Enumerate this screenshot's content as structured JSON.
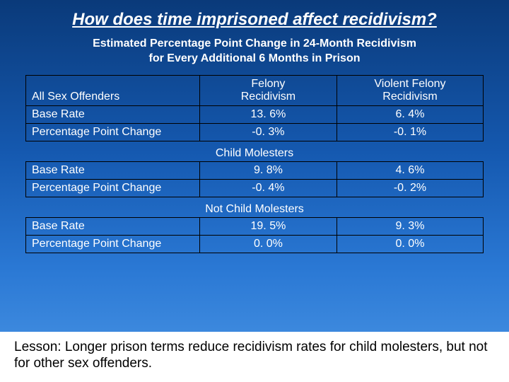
{
  "colors": {
    "bg_gradient_top": "#0a3a7a",
    "bg_gradient_bottom": "#4a95e5",
    "text_main": "#ffffff",
    "border": "#000000",
    "lesson_bg": "#ffffff",
    "lesson_text": "#000000"
  },
  "typography": {
    "title_fontsize": 24,
    "subtitle_fontsize": 16,
    "table_fontsize": 16,
    "lesson_fontsize": 19,
    "font_family": "Arial"
  },
  "layout": {
    "col_widths_pct": [
      38,
      30,
      32
    ],
    "slide_width": 720,
    "slide_height": 540
  },
  "title": "How does time imprisoned affect recidivism?",
  "subtitle_line1": "Estimated Percentage Point Change in 24-Month Recidivism",
  "subtitle_line2": "for Every Additional 6 Months in Prison",
  "columns": {
    "label": "All Sex Offenders",
    "c1_line1": "Felony",
    "c1_line2": "Recidivism",
    "c2_line1": "Violent Felony",
    "c2_line2": "Recidivism"
  },
  "sections": [
    {
      "header": null,
      "rows": [
        {
          "label": "Base Rate",
          "v1": "13. 6%",
          "v2": "6. 4%"
        },
        {
          "label": "Percentage Point Change",
          "v1": "-0. 3%",
          "v2": "-0. 1%"
        }
      ]
    },
    {
      "header": "Child Molesters",
      "rows": [
        {
          "label": "Base Rate",
          "v1": "9. 8%",
          "v2": "4. 6%"
        },
        {
          "label": "Percentage Point Change",
          "v1": "-0. 4%",
          "v2": "-0. 2%"
        }
      ]
    },
    {
      "header": "Not Child Molesters",
      "rows": [
        {
          "label": "Base Rate",
          "v1": "19. 5%",
          "v2": "9. 3%"
        },
        {
          "label": "Percentage Point Change",
          "v1": "0. 0%",
          "v2": "0. 0%"
        }
      ]
    }
  ],
  "lesson": "Lesson:  Longer prison terms reduce recidivism rates for child molesters, but not for other sex offenders."
}
